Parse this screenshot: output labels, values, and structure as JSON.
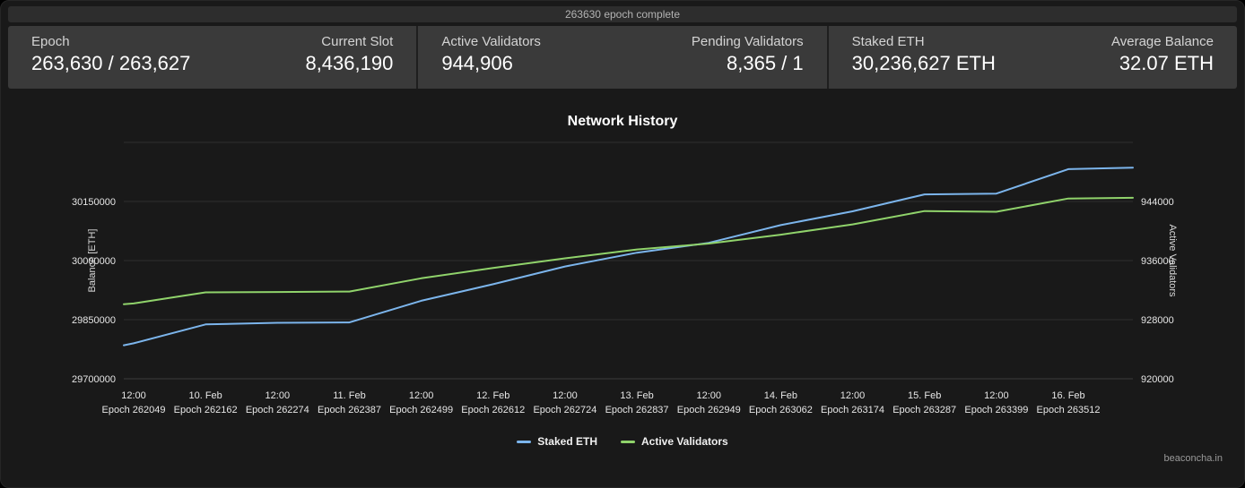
{
  "progress_strip": {
    "text": "263630 epoch complete"
  },
  "stats": {
    "epoch": {
      "label": "Epoch",
      "value": "263,630 / 263,627"
    },
    "current_slot": {
      "label": "Current Slot",
      "value": "8,436,190"
    },
    "active_validators": {
      "label": "Active Validators",
      "value": "944,906"
    },
    "pending_validators": {
      "label": "Pending Validators",
      "value": "8,365 / 1"
    },
    "staked_eth": {
      "label": "Staked ETH",
      "value": "30,236,627 ETH"
    },
    "average_balance": {
      "label": "Average Balance",
      "value": "32.07 ETH"
    }
  },
  "chart_data": {
    "type": "line",
    "title": "Network History",
    "grid": true,
    "legend_position": "bottom",
    "y_left": {
      "label": "Balance [ETH]",
      "min": 29700000,
      "max": 30300000,
      "ticks": [
        29700000,
        29850000,
        30000000,
        30150000
      ]
    },
    "y_right": {
      "label": "Active Validators",
      "min": 920000,
      "max": 952000,
      "ticks": [
        920000,
        928000,
        936000,
        944000
      ]
    },
    "x_ticks": [
      {
        "time": "12:00",
        "epoch": "Epoch 262049"
      },
      {
        "time": "10. Feb",
        "epoch": "Epoch 262162"
      },
      {
        "time": "12:00",
        "epoch": "Epoch 262274"
      },
      {
        "time": "11. Feb",
        "epoch": "Epoch 262387"
      },
      {
        "time": "12:00",
        "epoch": "Epoch 262499"
      },
      {
        "time": "12. Feb",
        "epoch": "Epoch 262612"
      },
      {
        "time": "12:00",
        "epoch": "Epoch 262724"
      },
      {
        "time": "13. Feb",
        "epoch": "Epoch 262837"
      },
      {
        "time": "12:00",
        "epoch": "Epoch 262949"
      },
      {
        "time": "14. Feb",
        "epoch": "Epoch 263062"
      },
      {
        "time": "12:00",
        "epoch": "Epoch 263174"
      },
      {
        "time": "15. Feb",
        "epoch": "Epoch 263287"
      },
      {
        "time": "12:00",
        "epoch": "Epoch 263399"
      },
      {
        "time": "16. Feb",
        "epoch": "Epoch 263512"
      }
    ],
    "series": [
      {
        "name": "Staked ETH",
        "color": "#7cb5ec",
        "axis": "left",
        "values": [
          29785000,
          29790000,
          29838000,
          29842000,
          29843000,
          29898000,
          29940000,
          29985000,
          30020000,
          30045000,
          30090000,
          30125000,
          30168000,
          30170000,
          30232000,
          30236000
        ]
      },
      {
        "name": "Active Validators",
        "color": "#90d36b",
        "axis": "right",
        "values": [
          930100,
          930200,
          931700,
          931750,
          931800,
          933600,
          935000,
          936300,
          937500,
          938300,
          939500,
          940900,
          942700,
          942600,
          944400,
          944500
        ]
      }
    ]
  },
  "watermark": "beaconcha.in"
}
